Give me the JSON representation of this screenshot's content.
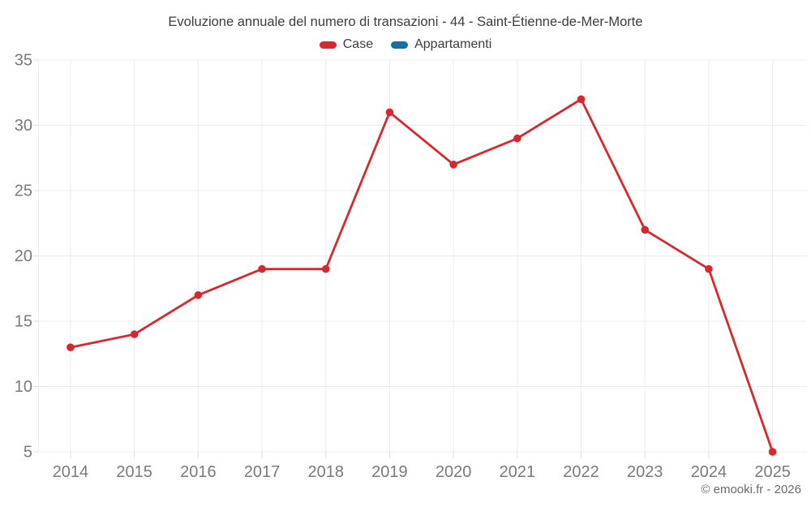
{
  "chart_data": {
    "type": "line",
    "title": "Evoluzione annuale del numero di transazioni - 44 - Saint-Étienne-de-Mer-Morte",
    "x": [
      2014,
      2015,
      2016,
      2017,
      2018,
      2019,
      2020,
      2021,
      2022,
      2023,
      2024,
      2025
    ],
    "series": [
      {
        "name": "Case",
        "color": "#d7282e",
        "values": [
          13,
          14,
          17,
          19,
          19,
          31,
          27,
          29,
          32,
          22,
          19,
          5
        ]
      },
      {
        "name": "Appartamenti",
        "color": "#1272a5",
        "values": []
      }
    ],
    "ylim": [
      5,
      35
    ],
    "yticks": [
      5,
      10,
      15,
      20,
      25,
      30,
      35
    ],
    "grid": true,
    "legend_position": "top"
  },
  "footer": {
    "credit": "© emooki.fr - 2026"
  },
  "colors": {
    "case_red": "#d7282e",
    "appartamenti_blue": "#1272a5",
    "gridline": "#ececec",
    "tick_mark": "#dedede",
    "axis_label": "#7a7a7a",
    "title_text": "#3d3d3d"
  }
}
